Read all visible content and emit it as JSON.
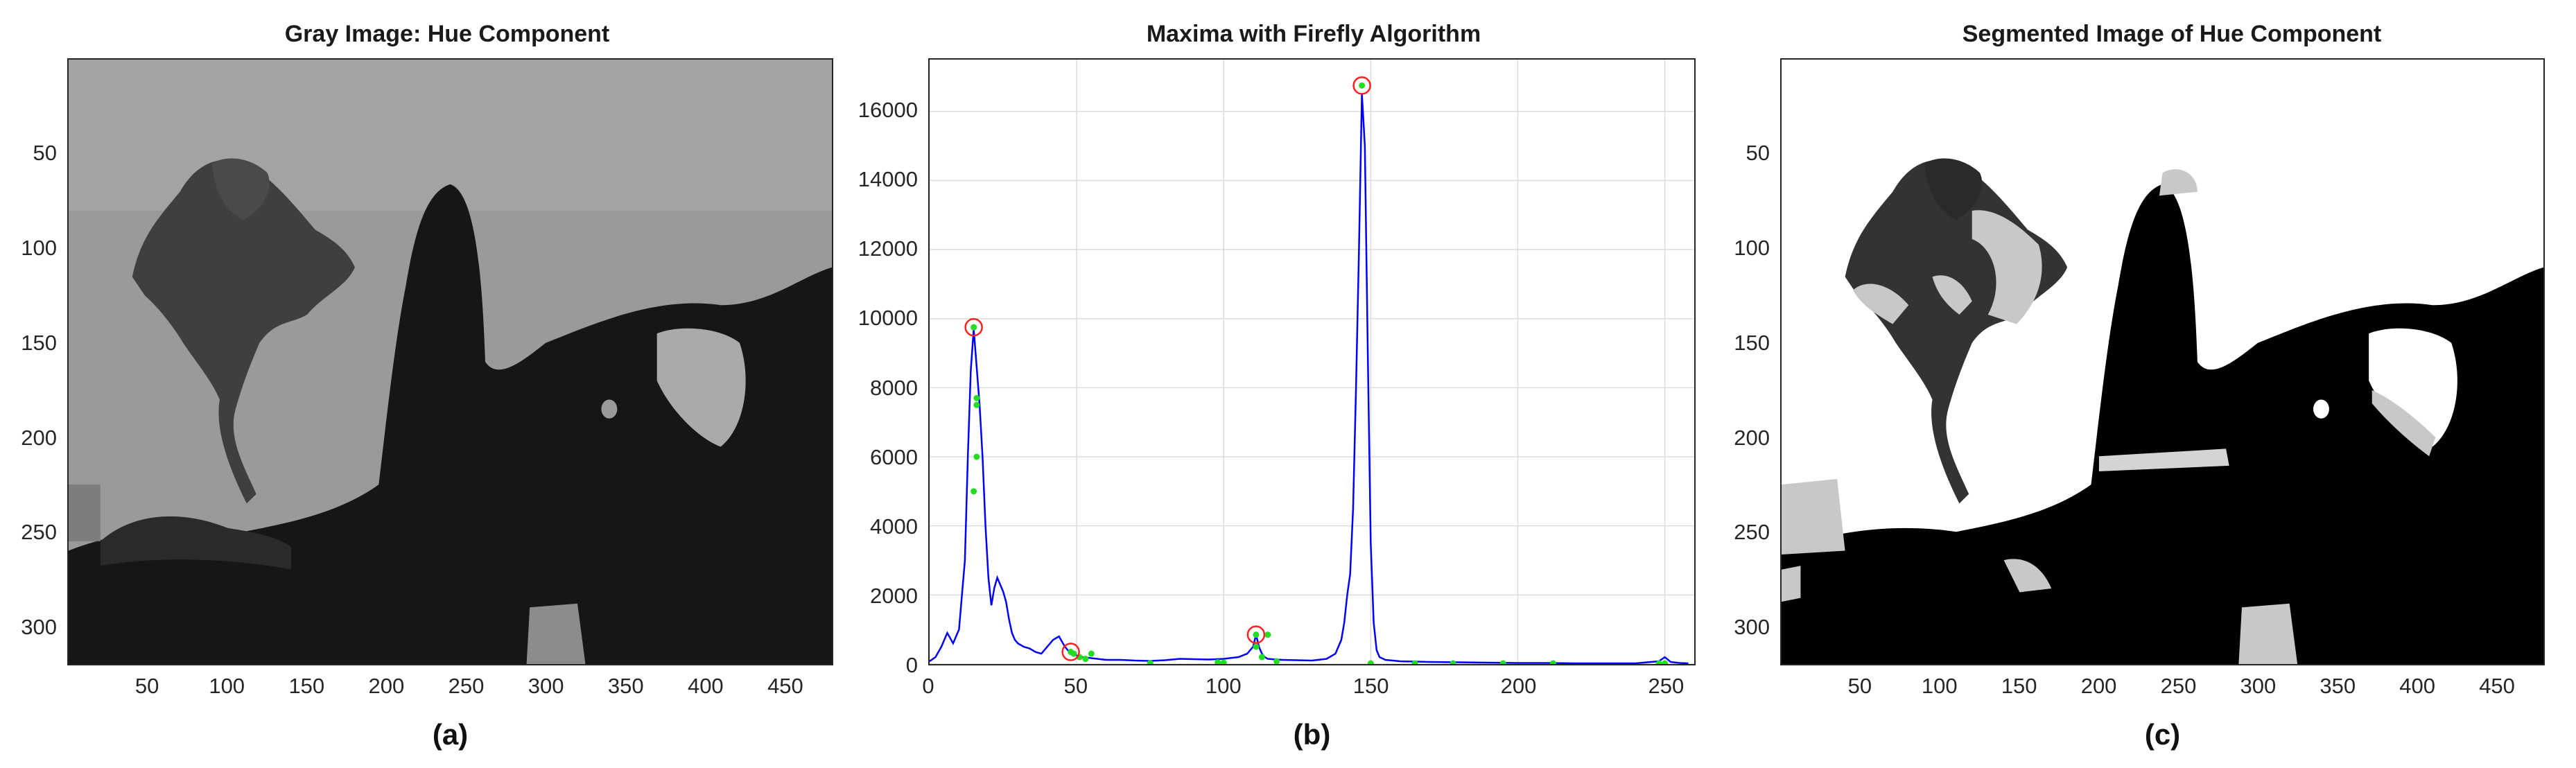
{
  "panels": [
    {
      "title": "Gray Image: Hue Component",
      "caption": "(a)",
      "xticks": [
        "50",
        "100",
        "150",
        "200",
        "250",
        "300",
        "350",
        "400",
        "450"
      ],
      "yticks": [
        "50",
        "100",
        "150",
        "200",
        "250",
        "300"
      ]
    },
    {
      "title": "Maxima with Firefly Algorithm",
      "caption": "(b)"
    },
    {
      "title": "Segmented Image of Hue Component",
      "caption": "(c)",
      "xticks": [
        "50",
        "100",
        "150",
        "200",
        "250",
        "300",
        "350",
        "400",
        "450"
      ],
      "yticks": [
        "50",
        "100",
        "150",
        "200",
        "250",
        "300"
      ]
    }
  ],
  "chart_data": [
    {
      "type": "heatmap",
      "title": "Gray Image: Hue Component",
      "xlim": [
        0,
        480
      ],
      "ylim": [
        0,
        320
      ],
      "y_reversed": true,
      "xticks": [
        50,
        100,
        150,
        200,
        250,
        300,
        350,
        400,
        450
      ],
      "yticks": [
        50,
        100,
        150,
        200,
        250,
        300
      ],
      "colormap": "gray"
    },
    {
      "type": "line",
      "title": "Maxima with Firefly Algorithm",
      "xlim": [
        0,
        260
      ],
      "ylim": [
        0,
        17500
      ],
      "grid": true,
      "xticks": [
        0,
        50,
        100,
        150,
        200,
        250
      ],
      "yticks": [
        0,
        2000,
        4000,
        6000,
        8000,
        10000,
        12000,
        14000,
        16000
      ],
      "series": [
        {
          "color": "#0000ff",
          "x": [
            0,
            2,
            4,
            6,
            8,
            10,
            12,
            13,
            14,
            15,
            16,
            17,
            18,
            19,
            20,
            21,
            22,
            23,
            24,
            25,
            26,
            27,
            28,
            29,
            30,
            32,
            34,
            36,
            38,
            40,
            42,
            44,
            46,
            48,
            50,
            52,
            54,
            56,
            58,
            60,
            65,
            70,
            75,
            80,
            85,
            90,
            95,
            100,
            105,
            108,
            110,
            111,
            112,
            113,
            114,
            115,
            118,
            120,
            125,
            130,
            135,
            138,
            140,
            141,
            142,
            143,
            144,
            145,
            146,
            147,
            148,
            149,
            150,
            151,
            152,
            153,
            155,
            160,
            170,
            180,
            190,
            200,
            210,
            220,
            230,
            240,
            248,
            250,
            252,
            255,
            258
          ],
          "y": [
            80,
            200,
            500,
            900,
            600,
            1000,
            3000,
            6000,
            8500,
            9700,
            8600,
            7500,
            6000,
            4000,
            2500,
            1700,
            2200,
            2500,
            2300,
            2100,
            1800,
            1300,
            900,
            700,
            600,
            500,
            450,
            350,
            300,
            500,
            700,
            800,
            500,
            300,
            250,
            200,
            180,
            160,
            140,
            120,
            120,
            100,
            90,
            110,
            150,
            140,
            130,
            150,
            200,
            300,
            500,
            850,
            500,
            300,
            200,
            150,
            130,
            120,
            110,
            100,
            150,
            300,
            700,
            1200,
            2000,
            2600,
            4500,
            8000,
            12000,
            16500,
            15000,
            9000,
            3500,
            1200,
            400,
            200,
            120,
            80,
            60,
            50,
            40,
            30,
            30,
            20,
            20,
            20,
            80,
            200,
            60,
            30,
            20
          ]
        }
      ],
      "maxima": [
        {
          "x": 15,
          "y": 9750
        },
        {
          "x": 48,
          "y": 350
        },
        {
          "x": 111,
          "y": 850
        },
        {
          "x": 147,
          "y": 16750
        }
      ],
      "fireflies": [
        {
          "x": 16,
          "y": 7700
        },
        {
          "x": 16,
          "y": 7500
        },
        {
          "x": 16,
          "y": 6000
        },
        {
          "x": 15,
          "y": 5000
        },
        {
          "x": 49,
          "y": 300
        },
        {
          "x": 51,
          "y": 200
        },
        {
          "x": 53,
          "y": 150
        },
        {
          "x": 55,
          "y": 300
        },
        {
          "x": 75,
          "y": 30
        },
        {
          "x": 98,
          "y": 50
        },
        {
          "x": 100,
          "y": 40
        },
        {
          "x": 111,
          "y": 500
        },
        {
          "x": 113,
          "y": 200
        },
        {
          "x": 115,
          "y": 850
        },
        {
          "x": 118,
          "y": 80
        },
        {
          "x": 150,
          "y": 20
        },
        {
          "x": 165,
          "y": 20
        },
        {
          "x": 178,
          "y": 20
        },
        {
          "x": 195,
          "y": 20
        },
        {
          "x": 212,
          "y": 20
        },
        {
          "x": 248,
          "y": 20
        },
        {
          "x": 250,
          "y": 20
        }
      ]
    },
    {
      "type": "heatmap",
      "title": "Segmented Image of Hue Component",
      "xlim": [
        0,
        480
      ],
      "ylim": [
        0,
        320
      ],
      "y_reversed": true,
      "xticks": [
        50,
        100,
        150,
        200,
        250,
        300,
        350,
        400,
        450
      ],
      "yticks": [
        50,
        100,
        150,
        200,
        250,
        300
      ],
      "colormap": "gray"
    }
  ]
}
